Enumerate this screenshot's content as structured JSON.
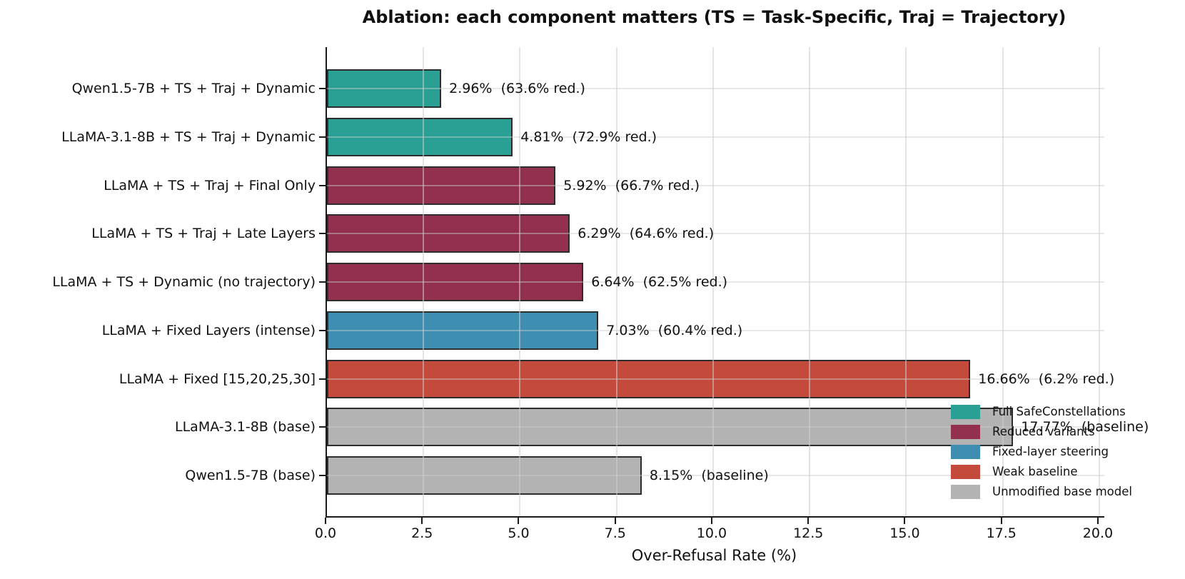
{
  "chart_data": {
    "type": "bar",
    "orientation": "horizontal",
    "title": "Ablation: each component matters (TS = Task-Specific, Traj = Trajectory)",
    "xlabel": "Over-Refusal Rate (%)",
    "xlim": [
      0,
      20.13
    ],
    "xticks": [
      {
        "value": 0,
        "label": "0.0"
      },
      {
        "value": 2.5,
        "label": "2.5"
      },
      {
        "value": 5,
        "label": "5.0"
      },
      {
        "value": 7.5,
        "label": "7.5"
      },
      {
        "value": 10,
        "label": "10.0"
      },
      {
        "value": 12.5,
        "label": "12.5"
      },
      {
        "value": 15,
        "label": "15.0"
      },
      {
        "value": 17.5,
        "label": "17.5"
      },
      {
        "value": 20,
        "label": "20.0"
      }
    ],
    "grid": true,
    "bars": [
      {
        "label": "Qwen1.5-7B + TS + Traj + Dynamic",
        "value": 2.96,
        "annotation": "2.96%  (63.6% red.)",
        "group": "full"
      },
      {
        "label": "LLaMA-3.1-8B + TS + Traj + Dynamic",
        "value": 4.81,
        "annotation": "4.81%  (72.9% red.)",
        "group": "full"
      },
      {
        "label": "LLaMA + TS + Traj + Final Only",
        "value": 5.92,
        "annotation": "5.92%  (66.7% red.)",
        "group": "reduced"
      },
      {
        "label": "LLaMA + TS + Traj + Late Layers",
        "value": 6.29,
        "annotation": "6.29%  (64.6% red.)",
        "group": "reduced"
      },
      {
        "label": "LLaMA + TS + Dynamic (no trajectory)",
        "value": 6.64,
        "annotation": "6.64%  (62.5% red.)",
        "group": "reduced"
      },
      {
        "label": "LLaMA + Fixed Layers (intense)",
        "value": 7.03,
        "annotation": "7.03%  (60.4% red.)",
        "group": "fixed"
      },
      {
        "label": "LLaMA + Fixed [15,20,25,30]",
        "value": 16.66,
        "annotation": "16.66%  (6.2% red.)",
        "group": "weak"
      },
      {
        "label": "LLaMA-3.1-8B (base)",
        "value": 17.77,
        "annotation": "17.77%  (baseline)",
        "group": "base"
      },
      {
        "label": "Qwen1.5-7B (base)",
        "value": 8.15,
        "annotation": "8.15%  (baseline)",
        "group": "base"
      }
    ],
    "group_colors": {
      "full": "#2aa095",
      "reduced": "#93304e",
      "fixed": "#3e8eb2",
      "weak": "#c44b3c",
      "base": "#b3b3b3"
    },
    "bar_edge_color": "#2d2d2d",
    "legend": {
      "position": "lower right",
      "entries": [
        {
          "label": "Full SafeConstellations",
          "group": "full"
        },
        {
          "label": "Reduced variants",
          "group": "reduced"
        },
        {
          "label": "Fixed-layer steering",
          "group": "fixed"
        },
        {
          "label": "Weak baseline",
          "group": "weak"
        },
        {
          "label": "Unmodified base model",
          "group": "base"
        }
      ]
    }
  }
}
